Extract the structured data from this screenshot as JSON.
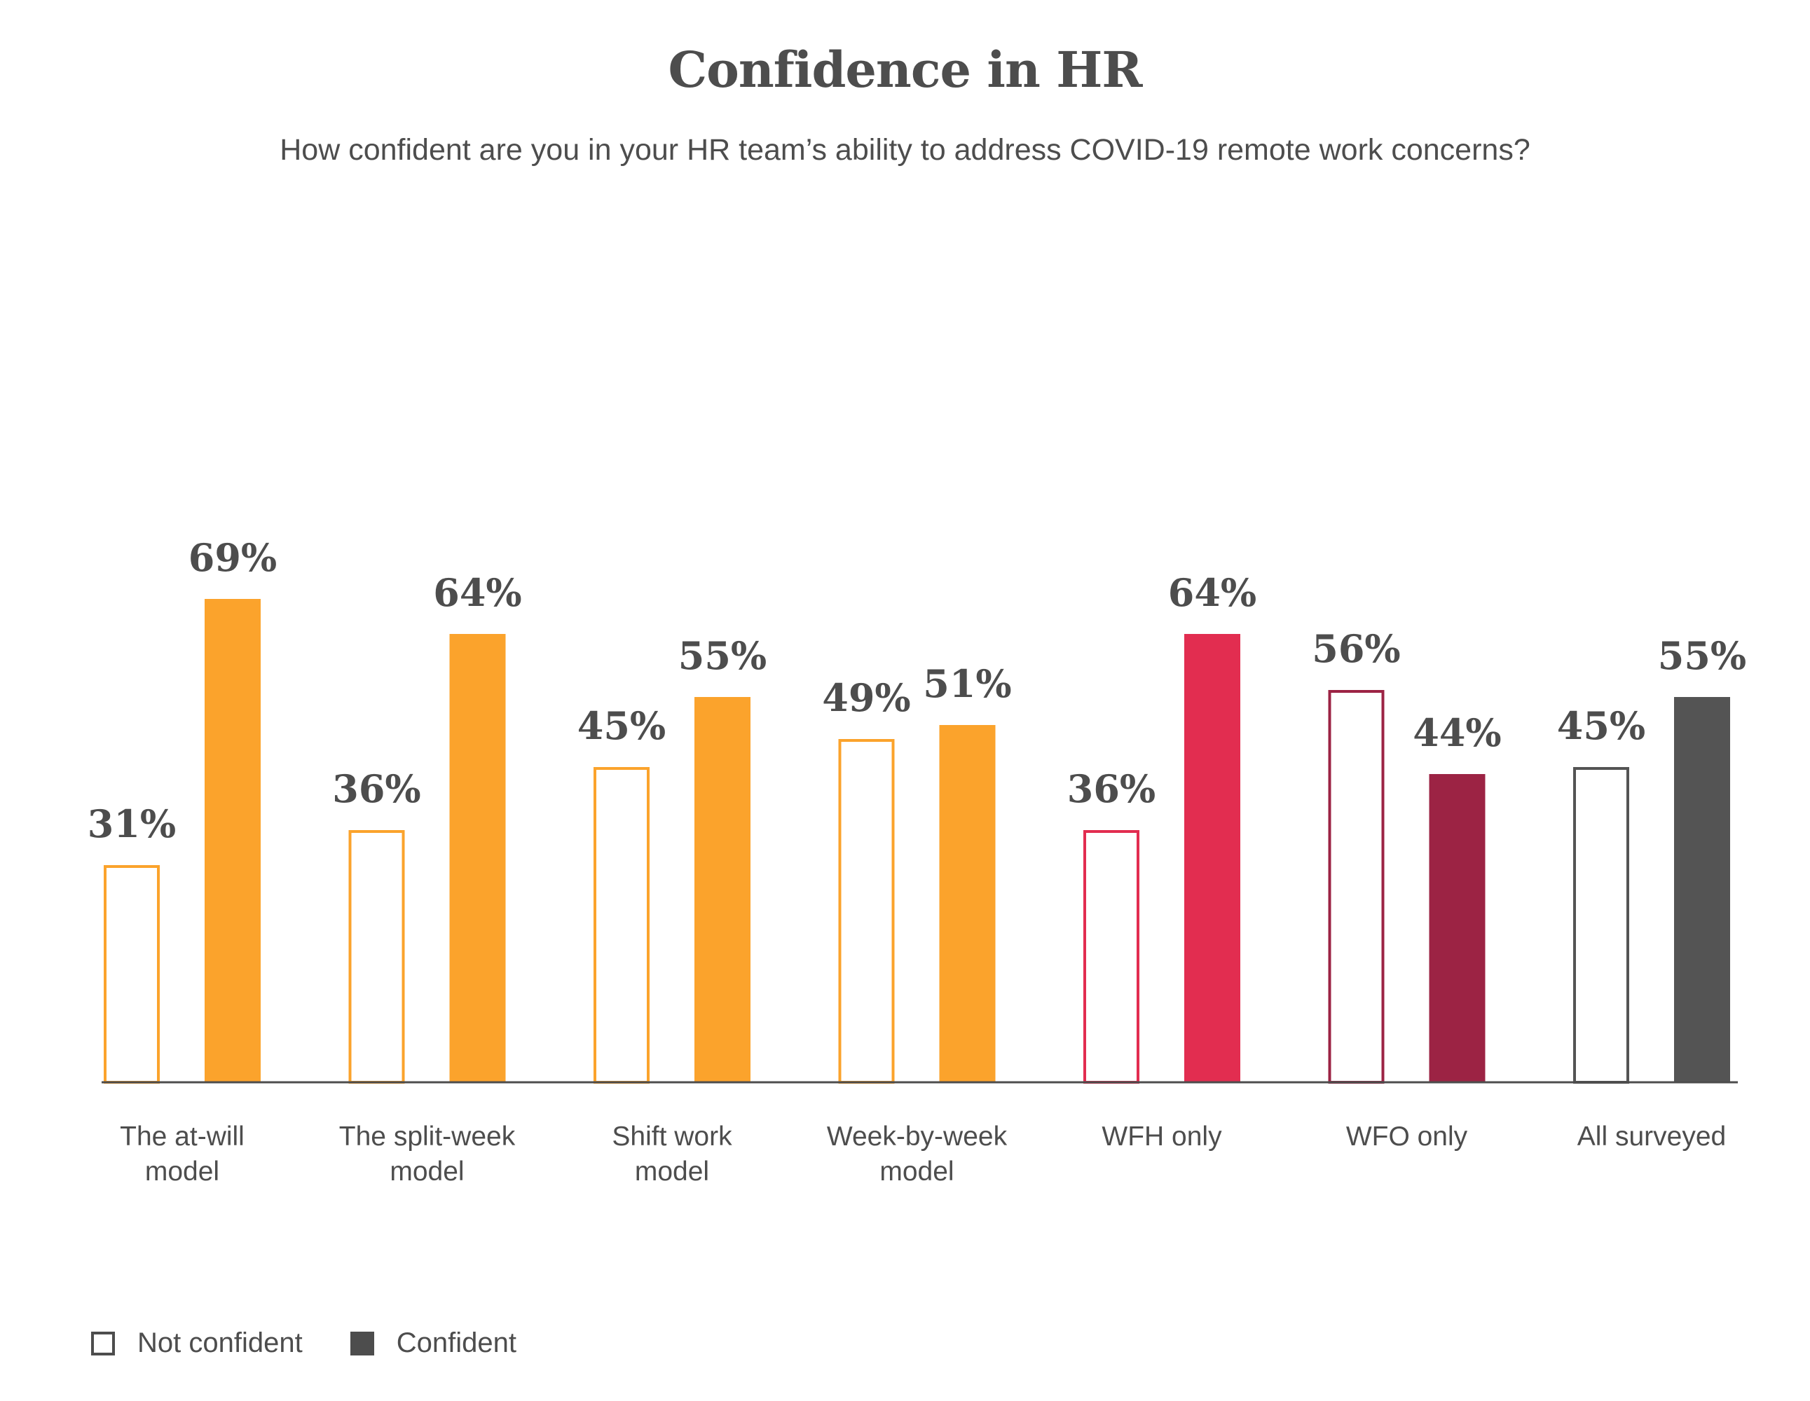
{
  "chart_data": {
    "type": "bar",
    "title": "Confidence in HR",
    "subtitle": "How confident are you in your HR team’s ability to address COVID-19 remote work concerns?",
    "categories": [
      [
        "The at-will",
        "model"
      ],
      [
        "The split-week",
        "model"
      ],
      [
        "Shift work",
        "model"
      ],
      [
        "Week-by-week",
        "model"
      ],
      [
        "WFH only"
      ],
      [
        "WFO only"
      ],
      [
        "All surveyed"
      ]
    ],
    "series": [
      {
        "name": "Not confident",
        "values": [
          31,
          36,
          45,
          49,
          36,
          56,
          45
        ],
        "labels": [
          "31%",
          "36%",
          "45%",
          "49%",
          "36%",
          "56%",
          "45%"
        ],
        "style": "outline"
      },
      {
        "name": "Confident",
        "values": [
          69,
          64,
          55,
          51,
          64,
          44,
          55
        ],
        "labels": [
          "69%",
          "64%",
          "55%",
          "51%",
          "64%",
          "44%",
          "55%"
        ],
        "style": "filled"
      }
    ],
    "group_colors": [
      "#fba32c",
      "#fba32c",
      "#fba32c",
      "#fba32c",
      "#e22d50",
      "#9c2344",
      "#545454"
    ],
    "ylim": [
      0,
      100
    ],
    "legend": {
      "placement": "bottom-left",
      "entries": [
        {
          "label": "Not confident",
          "style": "outline",
          "color": "#4d4d4d"
        },
        {
          "label": "Confident",
          "style": "filled",
          "color": "#4d4d4d"
        }
      ]
    },
    "grid": false,
    "baseline_color": "#4d4d4d"
  }
}
